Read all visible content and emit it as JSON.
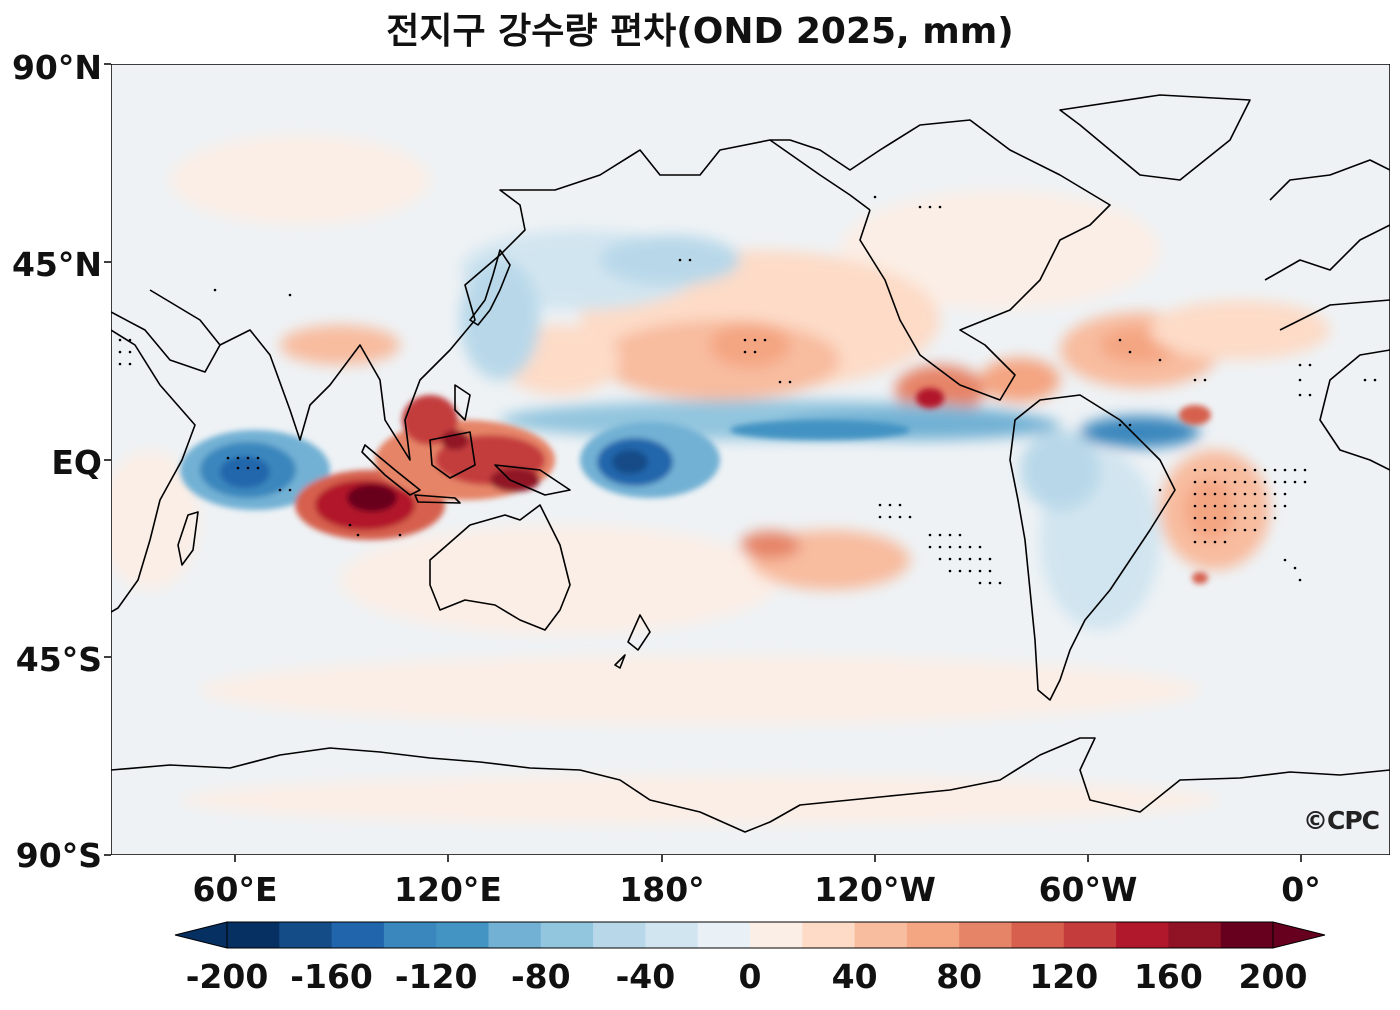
{
  "title": "전지구 강수량 편차(OND 2025, mm)",
  "lat_labels": [
    "90°N",
    "45°N",
    "EQ",
    "45°S",
    "90°S"
  ],
  "lon_labels": [
    "60°E",
    "120°E",
    "180°",
    "120°W",
    "60°W",
    "0°"
  ],
  "colorbar": {
    "tick_labels": [
      "-200",
      "-160",
      "-120",
      "-80",
      "-40",
      "0",
      "40",
      "80",
      "120",
      "160",
      "200"
    ],
    "min": -200,
    "max": 200,
    "step": 20,
    "extend": "both",
    "colors": [
      "#053061",
      "#134c87",
      "#2166ac",
      "#3a87bd",
      "#4393c3",
      "#72b1d4",
      "#92c5de",
      "#b8d8e9",
      "#d1e5f0",
      "#e9f1f6",
      "#fbeee6",
      "#fddbc7",
      "#f8bc9f",
      "#f4a582",
      "#e68467",
      "#d6604d",
      "#c43c3c",
      "#b2182b",
      "#901325",
      "#67001f"
    ]
  },
  "watermark": "©CPC",
  "colors": {
    "land_outline": "#000000",
    "neutral_background": "#eef2f5"
  }
}
